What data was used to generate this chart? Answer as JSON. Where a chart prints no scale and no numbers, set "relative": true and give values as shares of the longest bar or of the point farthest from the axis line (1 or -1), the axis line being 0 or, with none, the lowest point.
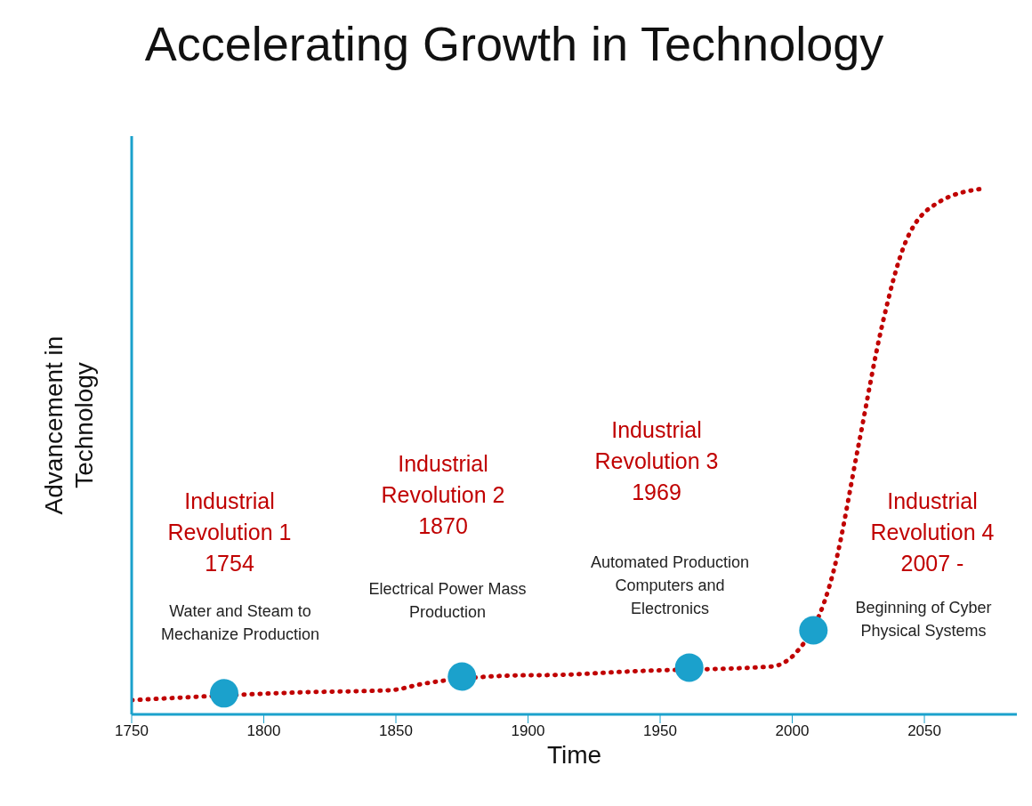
{
  "chart_data": {
    "type": "line",
    "title": "Accelerating Growth in Technology",
    "xlabel": "Time",
    "ylabel": "Advancement in\nTechnology",
    "relative": true,
    "xlim": [
      1750,
      2085
    ],
    "xticks": [
      1750,
      1800,
      1850,
      1900,
      1950,
      2000,
      2050
    ],
    "series": [
      {
        "color": "#c00000",
        "marker": "none",
        "line_style": "dotted",
        "x": [
          1750,
          1815,
          1848,
          1860,
          1895,
          1911,
          1940,
          1992,
          2001,
          2016,
          2025,
          2034,
          2043,
          2056,
          2072
        ],
        "values": [
          0.027,
          0.042,
          0.046,
          0.058,
          0.074,
          0.075,
          0.082,
          0.091,
          0.115,
          0.28,
          0.51,
          0.74,
          0.9,
          0.976,
          1.0
        ]
      },
      {
        "type": "scatter",
        "color": "#1ba1cc",
        "marker": "circle",
        "x": [
          1785,
          1875,
          1961,
          2008
        ],
        "values": [
          0.04,
          0.072,
          0.089,
          0.16
        ]
      }
    ],
    "annotations": [
      "Industrial\nRevolution 1\n1754",
      "Water and Steam to\nMechanize Production",
      "Industrial\nRevolution 2\n1870",
      "Electrical Power Mass\nProduction",
      "Industrial\nRevolution 3\n1969",
      "Automated Production\nComputers and\nElectronics",
      "Industrial\nRevolution 4\n2007 -",
      "Beginning of Cyber\nPhysical Systems"
    ],
    "grid": false,
    "legend": false
  }
}
